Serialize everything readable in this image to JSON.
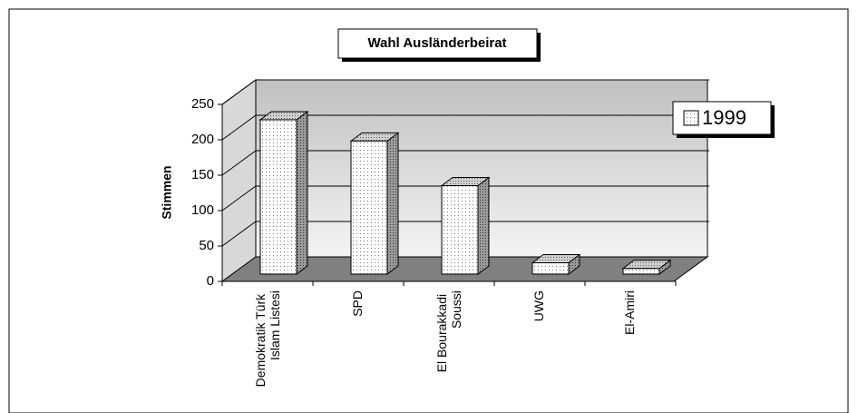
{
  "chart_data": {
    "type": "bar3d",
    "title": "Wahl Ausländerbeirat",
    "y_label": "Stimmen",
    "categories": [
      "Demokratik Türk Islam Listesi",
      "SPD",
      "El Bourakkadi Soussi",
      "UWG",
      "El-Amiri"
    ],
    "series": [
      {
        "name": "1999",
        "color": "#ffffff",
        "values": [
          218,
          188,
          125,
          16,
          8
        ]
      }
    ],
    "ylim": [
      0,
      250
    ],
    "yticks": [
      0,
      50,
      100,
      150,
      200,
      250
    ],
    "grid": true,
    "legend": "right"
  }
}
